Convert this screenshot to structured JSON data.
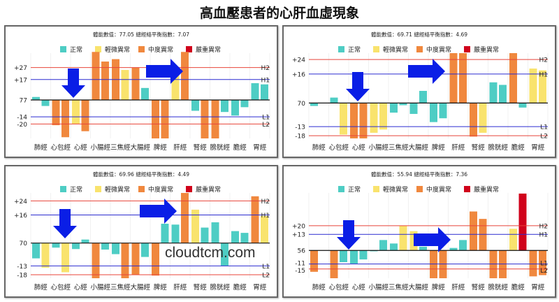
{
  "title": "高血壓患者的心肝血虛現象",
  "watermark": "cloudtcm.com",
  "status_colors": {
    "normal": "#4ecdc4",
    "mild": "#f9e36d",
    "moderate": "#f0883e",
    "severe": "#d0021b"
  },
  "legend": [
    {
      "key": "normal",
      "label": "正常"
    },
    {
      "key": "mild",
      "label": "輕微異常"
    },
    {
      "key": "moderate",
      "label": "中度異常"
    },
    {
      "key": "severe",
      "label": "嚴重異常"
    }
  ],
  "chart_data": [
    {
      "type": "bar",
      "header": "體能數值：77.05 總經絡平衡指數：7.07",
      "baseline_label": "77",
      "thresholds": [
        {
          "name": "H2",
          "label": "+27",
          "value": 27,
          "color": "#e8443a"
        },
        {
          "name": "H1",
          "label": "+17",
          "value": 17,
          "color": "#2b2bd0"
        },
        {
          "name": "L1",
          "label": "-14",
          "value": -14,
          "color": "#2b2bd0"
        },
        {
          "name": "L2",
          "label": "-20",
          "value": -20,
          "color": "#e8443a"
        }
      ],
      "ylim": [
        -32,
        39
      ],
      "categories": [
        "肺經",
        "心包經",
        "心經",
        "小腸經",
        "三焦經",
        "大腸經",
        "脾經",
        "肝經",
        "腎經",
        "膀胱經",
        "膽經",
        "胃經"
      ],
      "series": [
        {
          "values": [
            2.5,
            -21,
            -20,
            40,
            34,
            27,
            -32,
            21,
            -9,
            -32,
            -13,
            14
          ],
          "status": [
            "normal",
            "moderate",
            "mild",
            "moderate",
            "moderate",
            "moderate",
            "moderate",
            "mild",
            "normal",
            "moderate",
            "normal",
            "normal"
          ]
        },
        {
          "values": [
            -5,
            -31,
            -26,
            32,
            25,
            10,
            -32,
            40,
            -32,
            -10,
            -6,
            13
          ],
          "status": [
            "normal",
            "moderate",
            "moderate",
            "moderate",
            "mild",
            "normal",
            "moderate",
            "moderate",
            "moderate",
            "normal",
            "normal",
            "normal"
          ]
        }
      ],
      "arrows": [
        "down",
        "right"
      ]
    },
    {
      "type": "bar",
      "header": "體能數值：69.71 總經絡平衡指數：4.69",
      "baseline_label": "70",
      "thresholds": [
        {
          "name": "H2",
          "label": "+24",
          "value": 24,
          "color": "#e8443a"
        },
        {
          "name": "H1",
          "label": "+16",
          "value": 16,
          "color": "#2b2bd0"
        },
        {
          "name": "L1",
          "label": "-13",
          "value": -13,
          "color": "#2b2bd0"
        },
        {
          "name": "L2",
          "label": "-18",
          "value": -18,
          "color": "#e8443a"
        }
      ],
      "ylim": [
        -19.5,
        27.5
      ],
      "categories": [
        "肺經",
        "心包經",
        "心經",
        "小腸經",
        "三焦經",
        "大腸經",
        "脾經",
        "肝經",
        "腎經",
        "膀胱經",
        "膽經",
        "胃經"
      ],
      "series": [
        {
          "values": [
            -1.6,
            3,
            -19.5,
            -16.4,
            -5.3,
            -6,
            -10.5,
            27.5,
            -18.5,
            11.4,
            27.5,
            19
          ],
          "status": [
            "normal",
            "normal",
            "moderate",
            "mild",
            "normal",
            "normal",
            "normal",
            "moderate",
            "moderate",
            "normal",
            "moderate",
            "mild"
          ]
        },
        {
          "values": [
            0,
            -17.4,
            -19.5,
            -14.6,
            -1.2,
            6.7,
            -8.4,
            27.5,
            -16.4,
            10,
            -2.5,
            18
          ],
          "status": [
            "normal",
            "mild",
            "moderate",
            "mild",
            "normal",
            "normal",
            "normal",
            "moderate",
            "mild",
            "normal",
            "normal",
            "mild"
          ]
        }
      ],
      "arrows": [
        "down",
        "right"
      ]
    },
    {
      "type": "bar",
      "header": "體能數值：69.96 總經絡平衡指數：4.49",
      "baseline_label": "70",
      "thresholds": [
        {
          "name": "H2",
          "label": "+24",
          "value": 24,
          "color": "#e8443a"
        },
        {
          "name": "H1",
          "label": "+16",
          "value": 16,
          "color": "#2b2bd0"
        },
        {
          "name": "L1",
          "label": "-13",
          "value": -13,
          "color": "#2b2bd0"
        },
        {
          "name": "L2",
          "label": "-18",
          "value": -18,
          "color": "#e8443a"
        }
      ],
      "ylim": [
        -20,
        28.5
      ],
      "categories": [
        "肺經",
        "心包經",
        "心經",
        "小腸經",
        "三焦經",
        "大腸經",
        "脾經",
        "肝經",
        "腎經",
        "膀胱經",
        "膽經",
        "胃經"
      ],
      "series": [
        {
          "values": [
            -8.7,
            -2.6,
            -3.4,
            -20,
            -6.3,
            -18,
            -18.5,
            10.5,
            19,
            11.8,
            6.8,
            26.6
          ],
          "status": [
            "normal",
            "normal",
            "normal",
            "moderate",
            "normal",
            "moderate",
            "moderate",
            "normal",
            "mild",
            "normal",
            "normal",
            "moderate"
          ]
        },
        {
          "values": [
            -14,
            -16.6,
            2,
            -3.7,
            -20,
            -7.9,
            11,
            28.5,
            8.8,
            -12.9,
            5.8,
            15.4
          ],
          "status": [
            "mild",
            "mild",
            "normal",
            "normal",
            "moderate",
            "normal",
            "normal",
            "moderate",
            "normal",
            "normal",
            "normal",
            "mild"
          ]
        }
      ],
      "arrows": [
        "down",
        "right"
      ]
    },
    {
      "type": "bar",
      "header": "體能數值：55.94 總經絡平衡指數：7.36",
      "baseline_label": "56",
      "thresholds": [
        {
          "name": "H2",
          "label": "+20",
          "value": 20,
          "color": "#e8443a"
        },
        {
          "name": "H1",
          "label": "+13",
          "value": 13,
          "color": "#2b2bd0"
        },
        {
          "name": "L1",
          "label": "-11",
          "value": -11,
          "color": "#2b2bd0"
        },
        {
          "name": "L2",
          "label": "-15",
          "value": -15,
          "color": "#e8443a"
        }
      ],
      "ylim": [
        -22.5,
        46.5
      ],
      "categories": [
        "肺經",
        "心包經",
        "心經",
        "小腸經",
        "三焦經",
        "大腸經",
        "脾經",
        "肝經",
        "腎經",
        "膀胱經",
        "膽經",
        "胃經"
      ],
      "series": [
        {
          "values": [
            -17.3,
            -22.5,
            -10.7,
            -0.7,
            5.6,
            15.6,
            -22.5,
            2,
            31.5,
            -22.5,
            17.5,
            -21
          ],
          "status": [
            "moderate",
            "moderate",
            "normal",
            "normal",
            "normal",
            "mild",
            "moderate",
            "normal",
            "moderate",
            "moderate",
            "mild",
            "moderate"
          ]
        },
        {
          "values": [
            0,
            -9.5,
            -7.3,
            8.4,
            20,
            3,
            -22.5,
            8.4,
            25.5,
            -22.5,
            46,
            -20
          ],
          "status": [
            "moderate",
            "normal",
            "normal",
            "normal",
            "mild",
            "normal",
            "moderate",
            "normal",
            "moderate",
            "moderate",
            "severe",
            "moderate"
          ]
        }
      ],
      "arrows": [
        "down",
        "right"
      ]
    }
  ]
}
